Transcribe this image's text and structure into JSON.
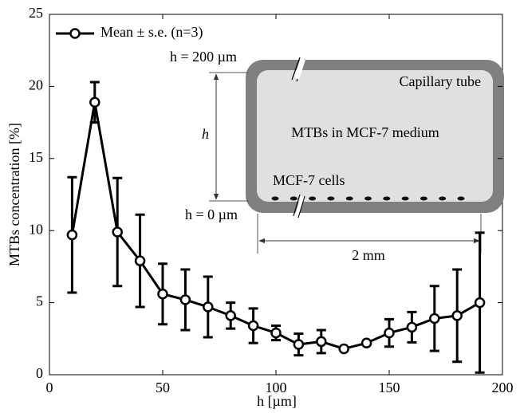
{
  "chart_data": {
    "type": "line",
    "xlabel": "h [µm]",
    "ylabel": "MTBs concentration [%]",
    "x": [
      10,
      20,
      30,
      40,
      50,
      60,
      70,
      80,
      90,
      100,
      110,
      120,
      130,
      140,
      150,
      160,
      170,
      180,
      190
    ],
    "series": [
      {
        "name": "Mean ± s.e. (n=3)",
        "color": "#000000",
        "values": [
          9.7,
          18.9,
          9.9,
          7.9,
          5.6,
          5.2,
          4.7,
          4.1,
          3.4,
          2.9,
          2.1,
          2.3,
          1.8,
          2.2,
          2.9,
          3.3,
          3.9,
          4.1,
          5.0
        ],
        "errors": [
          4.0,
          1.4,
          3.75,
          3.2,
          2.1,
          2.1,
          2.1,
          0.9,
          1.2,
          0.5,
          0.75,
          0.8,
          0.1,
          0.1,
          0.95,
          1.05,
          2.25,
          3.2,
          4.85
        ]
      }
    ],
    "xlim": [
      0,
      200
    ],
    "xticks": [
      0,
      50,
      100,
      150,
      200
    ],
    "ylim": [
      0,
      25
    ],
    "yticks": [
      0,
      5,
      10,
      15,
      20,
      25
    ],
    "legend": "upper left",
    "annotations": [
      "h = 200 µm",
      "h",
      "h = 0 µm",
      "Capillary tube",
      "MTBs in MCF-7 medium",
      "MCF-7 cells",
      "2 mm"
    ]
  }
}
